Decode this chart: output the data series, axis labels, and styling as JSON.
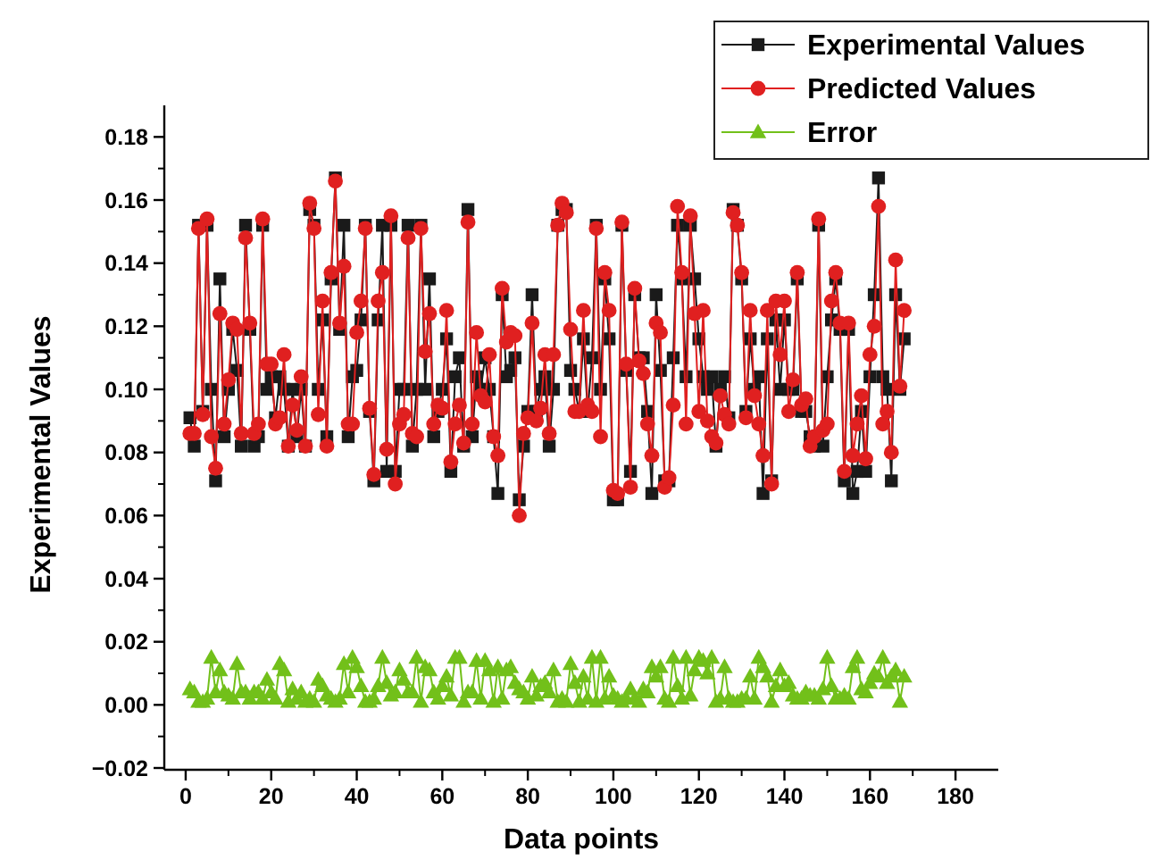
{
  "chart_data": {
    "type": "line",
    "xlabel": "Data points",
    "ylabel": "Experimental Values",
    "x": [
      1,
      2,
      3,
      4,
      5,
      6,
      7,
      8,
      9,
      10,
      11,
      12,
      13,
      14,
      15,
      16,
      17,
      18,
      19,
      20,
      21,
      22,
      23,
      24,
      25,
      26,
      27,
      28,
      29,
      30,
      31,
      32,
      33,
      34,
      35,
      36,
      37,
      38,
      39,
      40,
      41,
      42,
      43,
      44,
      45,
      46,
      47,
      48,
      49,
      50,
      51,
      52,
      53,
      54,
      55,
      56,
      57,
      58,
      59,
      60,
      61,
      62,
      63,
      64,
      65,
      66,
      67,
      68,
      69,
      70,
      71,
      72,
      73,
      74,
      75,
      76,
      77,
      78,
      79,
      80,
      81,
      82,
      83,
      84,
      85,
      86,
      87,
      88,
      89,
      90,
      91,
      92,
      93,
      94,
      95,
      96,
      97,
      98,
      99,
      100,
      101,
      102,
      103,
      104,
      105,
      106,
      107,
      108,
      109,
      110,
      111,
      112,
      113,
      114,
      115,
      116,
      117,
      118,
      119,
      120,
      121,
      122,
      123,
      124,
      125,
      126,
      127,
      128,
      129,
      130,
      131,
      132,
      133,
      134,
      135,
      136,
      137,
      138,
      139,
      140,
      141,
      142,
      143,
      144,
      145,
      146,
      147,
      148,
      149,
      150,
      151,
      152,
      153,
      154,
      155,
      156,
      157,
      158,
      159,
      160,
      161,
      162,
      163,
      164,
      165,
      166,
      167,
      168
    ],
    "xlim": [
      -5,
      190
    ],
    "xticks": [
      0,
      20,
      40,
      60,
      80,
      100,
      120,
      140,
      160,
      180
    ],
    "ylim": [
      -0.02,
      0.19
    ],
    "yticks": [
      {
        "value": -0.02,
        "label": "−0.02"
      },
      {
        "value": 0,
        "label": "0.00"
      },
      {
        "value": 0.02,
        "label": "0.02"
      },
      {
        "value": 0.04,
        "label": "0.04"
      },
      {
        "value": 0.06,
        "label": "0.06"
      },
      {
        "value": 0.08,
        "label": "0.08"
      },
      {
        "value": 0.1,
        "label": "0.10"
      },
      {
        "value": 0.12,
        "label": "0.12"
      },
      {
        "value": 0.14,
        "label": "0.14"
      },
      {
        "value": 0.16,
        "label": "0.16"
      },
      {
        "value": 0.18,
        "label": "0.18"
      }
    ],
    "grid": false,
    "legend": "top right",
    "line_style": "solid",
    "series": [
      {
        "name": "Experimental Values",
        "color": "#1a1a1a",
        "marker": "square",
        "values": [
          0.091,
          0.082,
          0.152,
          0.093,
          0.152,
          0.1,
          0.071,
          0.135,
          0.085,
          0.1,
          0.119,
          0.106,
          0.082,
          0.152,
          0.119,
          0.082,
          0.085,
          0.152,
          0.1,
          0.104,
          0.091,
          0.104,
          0.1,
          0.082,
          0.1,
          0.085,
          0.1,
          0.082,
          0.157,
          0.152,
          0.1,
          0.122,
          0.085,
          0.135,
          0.167,
          0.119,
          0.152,
          0.085,
          0.104,
          0.106,
          0.122,
          0.152,
          0.093,
          0.071,
          0.122,
          0.152,
          0.074,
          0.152,
          0.074,
          0.1,
          0.1,
          0.152,
          0.082,
          0.1,
          0.152,
          0.1,
          0.135,
          0.085,
          0.093,
          0.1,
          0.116,
          0.074,
          0.104,
          0.11,
          0.082,
          0.157,
          0.085,
          0.104,
          0.1,
          0.11,
          0.1,
          0.085,
          0.067,
          0.13,
          0.104,
          0.106,
          0.11,
          0.065,
          0.082,
          0.093,
          0.13,
          0.093,
          0.1,
          0.104,
          0.082,
          0.1,
          0.152,
          0.157,
          0.157,
          0.106,
          0.1,
          0.093,
          0.116,
          0.093,
          0.11,
          0.152,
          0.1,
          0.135,
          0.116,
          0.065,
          0.065,
          0.152,
          0.106,
          0.074,
          0.13,
          0.11,
          0.11,
          0.093,
          0.067,
          0.13,
          0.106,
          0.071,
          0.071,
          0.11,
          0.152,
          0.135,
          0.104,
          0.152,
          0.135,
          0.116,
          0.104,
          0.1,
          0.104,
          0.082,
          0.1,
          0.104,
          0.091,
          0.157,
          0.152,
          0.135,
          0.093,
          0.116,
          0.1,
          0.104,
          0.067,
          0.116,
          0.071,
          0.122,
          0.1,
          0.122,
          0.1,
          0.1,
          0.135,
          0.093,
          0.093,
          0.085,
          0.082,
          0.152,
          0.082,
          0.104,
          0.122,
          0.135,
          0.119,
          0.071,
          0.119,
          0.067,
          0.074,
          0.093,
          0.074,
          0.104,
          0.13,
          0.167,
          0.104,
          0.1,
          0.071,
          0.13,
          0.1,
          0.116
        ]
      },
      {
        "name": "Predicted Values",
        "color": "#e02020",
        "marker": "circle",
        "values": [
          0.086,
          0.086,
          0.151,
          0.092,
          0.154,
          0.085,
          0.075,
          0.124,
          0.089,
          0.103,
          0.121,
          0.119,
          0.086,
          0.148,
          0.121,
          0.086,
          0.089,
          0.154,
          0.108,
          0.108,
          0.089,
          0.091,
          0.111,
          0.082,
          0.095,
          0.087,
          0.104,
          0.082,
          0.159,
          0.151,
          0.092,
          0.128,
          0.082,
          0.137,
          0.166,
          0.121,
          0.139,
          0.089,
          0.089,
          0.118,
          0.128,
          0.151,
          0.094,
          0.073,
          0.128,
          0.137,
          0.081,
          0.155,
          0.07,
          0.089,
          0.092,
          0.148,
          0.086,
          0.085,
          0.151,
          0.112,
          0.124,
          0.089,
          0.095,
          0.094,
          0.125,
          0.077,
          0.089,
          0.095,
          0.083,
          0.153,
          0.089,
          0.118,
          0.098,
          0.096,
          0.111,
          0.085,
          0.079,
          0.132,
          0.115,
          0.118,
          0.117,
          0.06,
          0.086,
          0.091,
          0.121,
          0.09,
          0.094,
          0.111,
          0.086,
          0.111,
          0.152,
          0.159,
          0.156,
          0.119,
          0.093,
          0.093,
          0.125,
          0.095,
          0.093,
          0.151,
          0.085,
          0.137,
          0.125,
          0.068,
          0.067,
          0.153,
          0.108,
          0.069,
          0.132,
          0.109,
          0.105,
          0.089,
          0.079,
          0.121,
          0.118,
          0.069,
          0.072,
          0.095,
          0.158,
          0.137,
          0.089,
          0.155,
          0.124,
          0.093,
          0.125,
          0.09,
          0.085,
          0.083,
          0.098,
          0.092,
          0.089,
          0.156,
          0.152,
          0.137,
          0.091,
          0.125,
          0.098,
          0.089,
          0.079,
          0.125,
          0.07,
          0.128,
          0.111,
          0.128,
          0.093,
          0.103,
          0.137,
          0.095,
          0.097,
          0.082,
          0.085,
          0.154,
          0.087,
          0.089,
          0.128,
          0.137,
          0.121,
          0.074,
          0.121,
          0.079,
          0.089,
          0.098,
          0.078,
          0.111,
          0.12,
          0.158,
          0.089,
          0.093,
          0.08,
          0.141,
          0.101,
          0.125
        ]
      },
      {
        "name": "Error",
        "color": "#72c01a",
        "marker": "triangle",
        "values": [
          0.005,
          0.004,
          0.001,
          0.001,
          0.002,
          0.015,
          0.004,
          0.011,
          0.004,
          0.003,
          0.002,
          0.013,
          0.004,
          0.004,
          0.002,
          0.004,
          0.004,
          0.002,
          0.008,
          0.004,
          0.002,
          0.013,
          0.011,
          0.001,
          0.005,
          0.002,
          0.004,
          0.001,
          0.002,
          0.001,
          0.008,
          0.006,
          0.003,
          0.002,
          0.001,
          0.002,
          0.013,
          0.004,
          0.015,
          0.012,
          0.006,
          0.001,
          0.001,
          0.002,
          0.006,
          0.015,
          0.007,
          0.003,
          0.004,
          0.011,
          0.008,
          0.004,
          0.004,
          0.015,
          0.001,
          0.012,
          0.011,
          0.004,
          0.002,
          0.006,
          0.009,
          0.003,
          0.015,
          0.015,
          0.001,
          0.004,
          0.004,
          0.014,
          0.002,
          0.014,
          0.011,
          0.001,
          0.012,
          0.002,
          0.011,
          0.012,
          0.007,
          0.005,
          0.004,
          0.002,
          0.009,
          0.003,
          0.006,
          0.007,
          0.004,
          0.011,
          0.001,
          0.002,
          0.001,
          0.013,
          0.007,
          0.001,
          0.009,
          0.002,
          0.015,
          0.001,
          0.015,
          0.002,
          0.009,
          0.003,
          0.002,
          0.001,
          0.002,
          0.005,
          0.002,
          0.001,
          0.005,
          0.004,
          0.012,
          0.009,
          0.012,
          0.002,
          0.001,
          0.015,
          0.006,
          0.002,
          0.015,
          0.003,
          0.011,
          0.015,
          0.014,
          0.01,
          0.015,
          0.001,
          0.002,
          0.012,
          0.002,
          0.001,
          0.001,
          0.002,
          0.002,
          0.009,
          0.002,
          0.015,
          0.012,
          0.009,
          0.001,
          0.006,
          0.011,
          0.006,
          0.007,
          0.003,
          0.002,
          0.002,
          0.004,
          0.003,
          0.003,
          0.002,
          0.005,
          0.015,
          0.006,
          0.002,
          0.002,
          0.003,
          0.002,
          0.012,
          0.015,
          0.005,
          0.004,
          0.007,
          0.01,
          0.009,
          0.015,
          0.007,
          0.009,
          0.011,
          0.001,
          0.009
        ]
      }
    ]
  }
}
